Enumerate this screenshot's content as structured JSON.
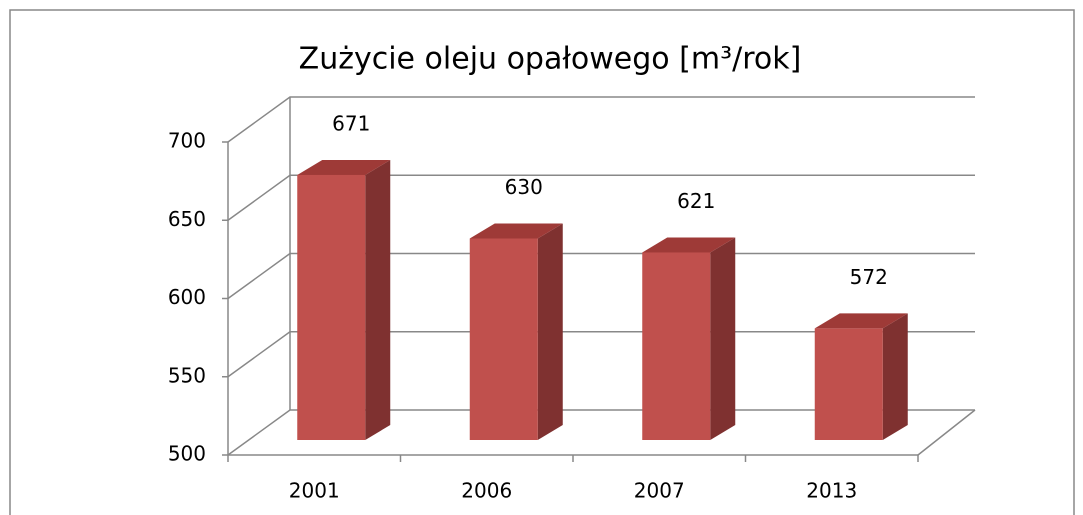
{
  "chart_data": {
    "type": "bar",
    "title": "Zużycie oleju opałowego [m³/rok]",
    "categories": [
      "2001",
      "2006",
      "2007",
      "2013"
    ],
    "values": [
      671,
      630,
      621,
      572
    ],
    "color": "#c0504d",
    "ylim": [
      500,
      700
    ],
    "yticks": [
      500,
      550,
      600,
      650,
      700
    ],
    "grid": true
  }
}
